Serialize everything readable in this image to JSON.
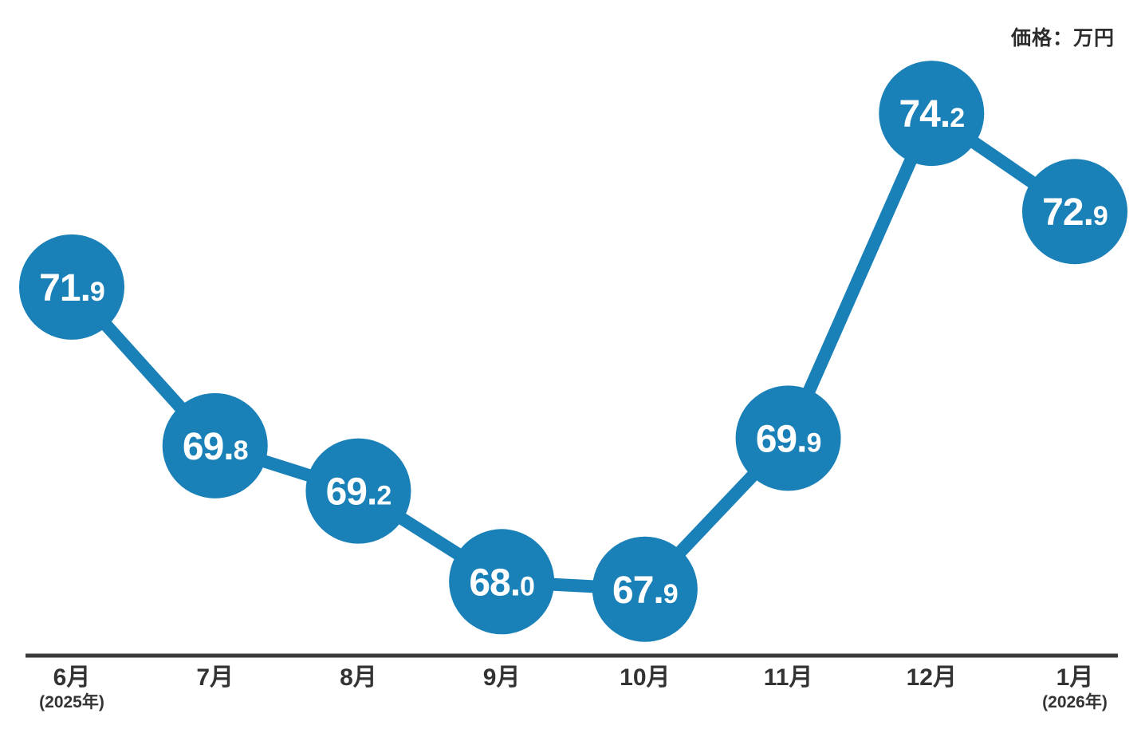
{
  "chart_data": {
    "type": "line",
    "title": "価格：万円",
    "categories": [
      "6月",
      "7月",
      "8月",
      "9月",
      "10月",
      "11月",
      "12月",
      "1月"
    ],
    "category_notes": [
      "(2025年)",
      "",
      "",
      "",
      "",
      "",
      "",
      "(2026年)"
    ],
    "series": [
      {
        "name": "価格",
        "values": [
          71.9,
          69.8,
          69.2,
          68.0,
          67.9,
          69.9,
          74.2,
          72.9
        ],
        "labels": [
          "71.9",
          "69.8",
          "69.2",
          "68.0",
          "67.9",
          "69.9",
          "74.2",
          "72.9"
        ]
      }
    ],
    "ylim": [
      66.05,
      75.7
    ],
    "xlabel": "月",
    "ylabel": "価格（万円）",
    "grid": false,
    "legend": false,
    "marker_style": "filled-circle-with-value",
    "colors": {
      "accent": "#1a81b8",
      "value_text": "#ffffff",
      "axis": "#3a3a3a",
      "tick_text": "#333333",
      "title_text": "#2d2d2d",
      "background": "#ffffff"
    }
  }
}
